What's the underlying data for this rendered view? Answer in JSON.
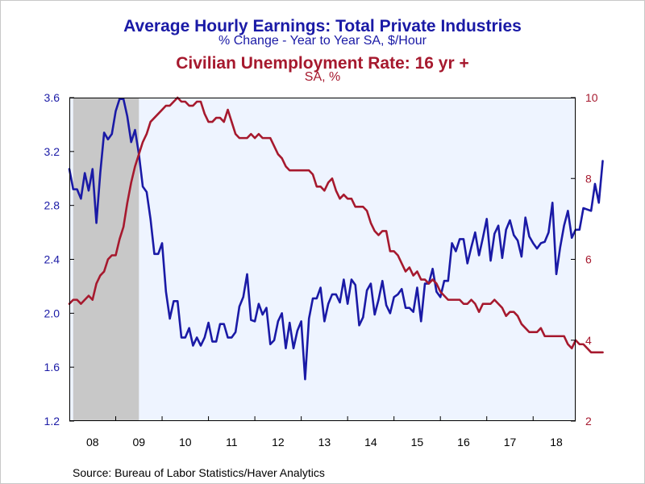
{
  "chart_data": {
    "type": "line",
    "title": "Average Hourly Earnings: Total Private Industries",
    "subtitle": "% Change - Year to Year     SA, $/Hour",
    "title2": "Civilian Unemployment Rate: 16 yr +",
    "subtitle2": "SA, %",
    "source": "Source:  Bureau of Labor Statistics/Haver Analytics",
    "x_start": 2008.0,
    "x_end": 2018.917,
    "x_ticks": [
      {
        "label": "08",
        "at": 2008.5
      },
      {
        "label": "09",
        "at": 2009.5
      },
      {
        "label": "10",
        "at": 2010.5
      },
      {
        "label": "11",
        "at": 2011.5
      },
      {
        "label": "12",
        "at": 2012.5
      },
      {
        "label": "13",
        "at": 2013.5
      },
      {
        "label": "14",
        "at": 2014.5
      },
      {
        "label": "15",
        "at": 2015.5
      },
      {
        "label": "16",
        "at": 2016.5
      },
      {
        "label": "17",
        "at": 2017.5
      },
      {
        "label": "18",
        "at": 2018.5
      }
    ],
    "recession": {
      "start": 2008.083,
      "end": 2009.5
    },
    "y_left": {
      "range": [
        1.2,
        3.6
      ],
      "ticks": [
        "1.2",
        "1.6",
        "2.0",
        "2.4",
        "2.8",
        "3.2",
        "3.6"
      ]
    },
    "y_right": {
      "range": [
        2,
        10
      ],
      "ticks": [
        "2",
        "4",
        "6",
        "8",
        "10"
      ]
    },
    "series": [
      {
        "name": "Average Hourly Earnings: Total Private Industries",
        "axis": "left",
        "color": "#1a1aa6",
        "start": 2008.0,
        "step_months": 1,
        "values": [
          3.07,
          2.92,
          2.92,
          2.85,
          3.04,
          2.91,
          3.07,
          2.67,
          3.04,
          3.34,
          3.29,
          3.33,
          3.5,
          3.59,
          3.59,
          3.46,
          3.27,
          3.36,
          3.18,
          2.94,
          2.9,
          2.7,
          2.44,
          2.44,
          2.52,
          2.16,
          1.96,
          2.09,
          2.09,
          1.82,
          1.82,
          1.89,
          1.76,
          1.82,
          1.76,
          1.82,
          1.93,
          1.79,
          1.79,
          1.92,
          1.92,
          1.82,
          1.82,
          1.86,
          2.05,
          2.12,
          2.29,
          1.95,
          1.94,
          2.07,
          1.99,
          2.04,
          1.77,
          1.8,
          1.94,
          2.0,
          1.74,
          1.93,
          1.74,
          1.87,
          1.94,
          1.51,
          1.96,
          2.11,
          2.11,
          2.19,
          1.94,
          2.07,
          2.14,
          2.14,
          2.08,
          2.25,
          2.07,
          2.25,
          2.21,
          1.91,
          1.97,
          2.17,
          2.22,
          1.99,
          2.1,
          2.24,
          2.06,
          2.0,
          2.12,
          2.14,
          2.18,
          2.04,
          2.04,
          2.01,
          2.19,
          1.94,
          2.22,
          2.22,
          2.33,
          2.16,
          2.12,
          2.24,
          2.24,
          2.52,
          2.46,
          2.55,
          2.55,
          2.37,
          2.49,
          2.6,
          2.43,
          2.56,
          2.7,
          2.39,
          2.59,
          2.65,
          2.41,
          2.62,
          2.69,
          2.58,
          2.54,
          2.42,
          2.71,
          2.57,
          2.52,
          2.48,
          2.52,
          2.53,
          2.6,
          2.82,
          2.29,
          2.49,
          2.65,
          2.76,
          2.56,
          2.62,
          2.62,
          2.78,
          2.77,
          2.76,
          2.96,
          2.82,
          3.13
        ]
      },
      {
        "name": "Civilian Unemployment Rate: 16 yr +",
        "axis": "right",
        "color": "#a6192e",
        "start": 2008.0,
        "step_months": 1,
        "values": [
          4.9,
          5.0,
          5.0,
          4.9,
          5.0,
          5.1,
          5.0,
          5.4,
          5.6,
          5.7,
          6.0,
          6.1,
          6.1,
          6.5,
          6.8,
          7.4,
          7.9,
          8.3,
          8.6,
          8.9,
          9.1,
          9.4,
          9.5,
          9.6,
          9.7,
          9.8,
          9.8,
          9.9,
          10.0,
          9.9,
          9.9,
          9.8,
          9.8,
          9.9,
          9.9,
          9.6,
          9.4,
          9.4,
          9.5,
          9.5,
          9.4,
          9.7,
          9.4,
          9.1,
          9.0,
          9.0,
          9.0,
          9.1,
          9.0,
          9.1,
          9.0,
          9.0,
          9.0,
          8.8,
          8.6,
          8.5,
          8.3,
          8.2,
          8.2,
          8.2,
          8.2,
          8.2,
          8.2,
          8.1,
          7.8,
          7.8,
          7.7,
          7.9,
          8.0,
          7.7,
          7.5,
          7.6,
          7.5,
          7.5,
          7.3,
          7.3,
          7.3,
          7.2,
          6.9,
          6.7,
          6.6,
          6.7,
          6.7,
          6.2,
          6.2,
          6.1,
          5.9,
          5.7,
          5.8,
          5.6,
          5.7,
          5.5,
          5.5,
          5.4,
          5.5,
          5.4,
          5.2,
          5.1,
          5.0,
          5.0,
          5.0,
          5.0,
          4.9,
          4.9,
          5.0,
          4.9,
          4.7,
          4.9,
          4.9,
          4.9,
          5.0,
          4.9,
          4.8,
          4.6,
          4.7,
          4.7,
          4.6,
          4.4,
          4.3,
          4.2,
          4.2,
          4.2,
          4.3,
          4.1,
          4.1,
          4.1,
          4.1,
          4.1,
          4.1,
          3.9,
          3.8,
          4.0,
          3.9,
          3.9,
          3.8,
          3.7,
          3.7,
          3.7,
          3.7
        ]
      }
    ]
  }
}
